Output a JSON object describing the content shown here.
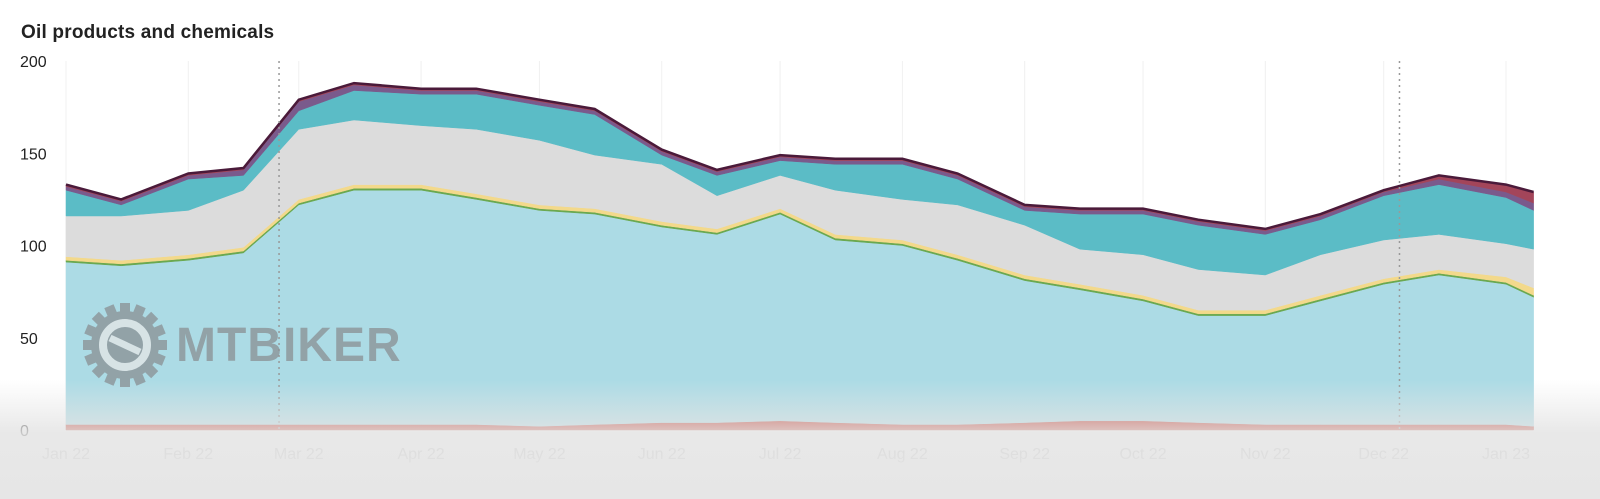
{
  "chart_data": {
    "type": "area",
    "stacked": true,
    "title": "Oil products and chemicals",
    "xlabel": "",
    "ylabel": "",
    "ylim": [
      0,
      200
    ],
    "yticks": [
      "0",
      "50",
      "100",
      "150",
      "200"
    ],
    "ytick_values": [
      0,
      50,
      100,
      150,
      200
    ],
    "xticks": [
      "Jan 22",
      "Feb 22",
      "Mar 22",
      "Apr 22",
      "May 22",
      "Jun 22",
      "Jul 22",
      "Aug 22",
      "Sep 22",
      "Oct 22",
      "Nov 22",
      "Dec 22",
      "Jan 23"
    ],
    "xtick_dates": [
      "2022-01-01",
      "2022-02-01",
      "2022-03-01",
      "2022-04-01",
      "2022-05-01",
      "2022-06-01",
      "2022-07-01",
      "2022-08-01",
      "2022-09-01",
      "2022-10-01",
      "2022-11-01",
      "2022-12-01",
      "2023-01-01"
    ],
    "reference_lines": [
      "2022-02-24",
      "2022-12-05"
    ],
    "grid": "vertical faint",
    "legend": "none",
    "x": [
      "2022-01-01",
      "2022-01-15",
      "2022-02-01",
      "2022-02-15",
      "2022-03-01",
      "2022-03-15",
      "2022-04-01",
      "2022-04-15",
      "2022-05-01",
      "2022-05-15",
      "2022-06-01",
      "2022-06-15",
      "2022-07-01",
      "2022-07-15",
      "2022-08-01",
      "2022-08-15",
      "2022-09-01",
      "2022-09-15",
      "2022-10-01",
      "2022-10-15",
      "2022-11-01",
      "2022-11-15",
      "2022-12-01",
      "2022-12-15",
      "2023-01-01",
      "2023-01-08"
    ],
    "series": [
      {
        "name": "red",
        "color": "#c0392b",
        "values": [
          3,
          3,
          3,
          3,
          3,
          3,
          3,
          3,
          2,
          3,
          4,
          4,
          5,
          4,
          3,
          3,
          4,
          5,
          5,
          4,
          3,
          3,
          3,
          3,
          3,
          2
        ]
      },
      {
        "name": "light blue",
        "color": "#acdbe5",
        "values": [
          88,
          86,
          89,
          93,
          119,
          127,
          127,
          122,
          117,
          114,
          106,
          102,
          112,
          99,
          97,
          89,
          77,
          71,
          65,
          58,
          59,
          67,
          76,
          81,
          76,
          70
        ]
      },
      {
        "name": "green",
        "color": "#6aa84f",
        "values": [
          1,
          1,
          1,
          1,
          1,
          1,
          1,
          1,
          1,
          1,
          1,
          1,
          1,
          1,
          1,
          1,
          1,
          1,
          1,
          1,
          1,
          1,
          1,
          1,
          1,
          1
        ]
      },
      {
        "name": "yellow",
        "color": "#f3d98b",
        "values": [
          2,
          2,
          2,
          2,
          2,
          2,
          2,
          2,
          2,
          2,
          2,
          2,
          2,
          2,
          2,
          2,
          2,
          2,
          2,
          2,
          2,
          2,
          2,
          2,
          3,
          4
        ]
      },
      {
        "name": "gray",
        "color": "#dcdcdc",
        "values": [
          22,
          24,
          24,
          31,
          38,
          35,
          32,
          35,
          35,
          29,
          31,
          18,
          18,
          24,
          22,
          27,
          27,
          19,
          22,
          22,
          19,
          22,
          21,
          19,
          18,
          21
        ]
      },
      {
        "name": "teal",
        "color": "#5bbcc6",
        "values": [
          14,
          6,
          17,
          8,
          10,
          16,
          17,
          19,
          19,
          22,
          5,
          11,
          8,
          14,
          19,
          14,
          8,
          19,
          22,
          24,
          22,
          19,
          24,
          27,
          25,
          21
        ]
      },
      {
        "name": "purple",
        "color": "#7a5a8c",
        "values": [
          2,
          2,
          2,
          3,
          5,
          3,
          2,
          2,
          2,
          2,
          2,
          2,
          2,
          2,
          2,
          2,
          2,
          2,
          2,
          2,
          2,
          2,
          2,
          3,
          3,
          4
        ]
      },
      {
        "name": "maroon",
        "color": "#a3455a",
        "values": [
          1,
          1,
          1,
          1,
          1,
          1,
          1,
          1,
          1,
          1,
          1,
          1,
          1,
          1,
          1,
          1,
          1,
          1,
          1,
          1,
          1,
          1,
          1,
          2,
          4,
          6
        ]
      }
    ]
  },
  "watermark": "MTBIKER"
}
